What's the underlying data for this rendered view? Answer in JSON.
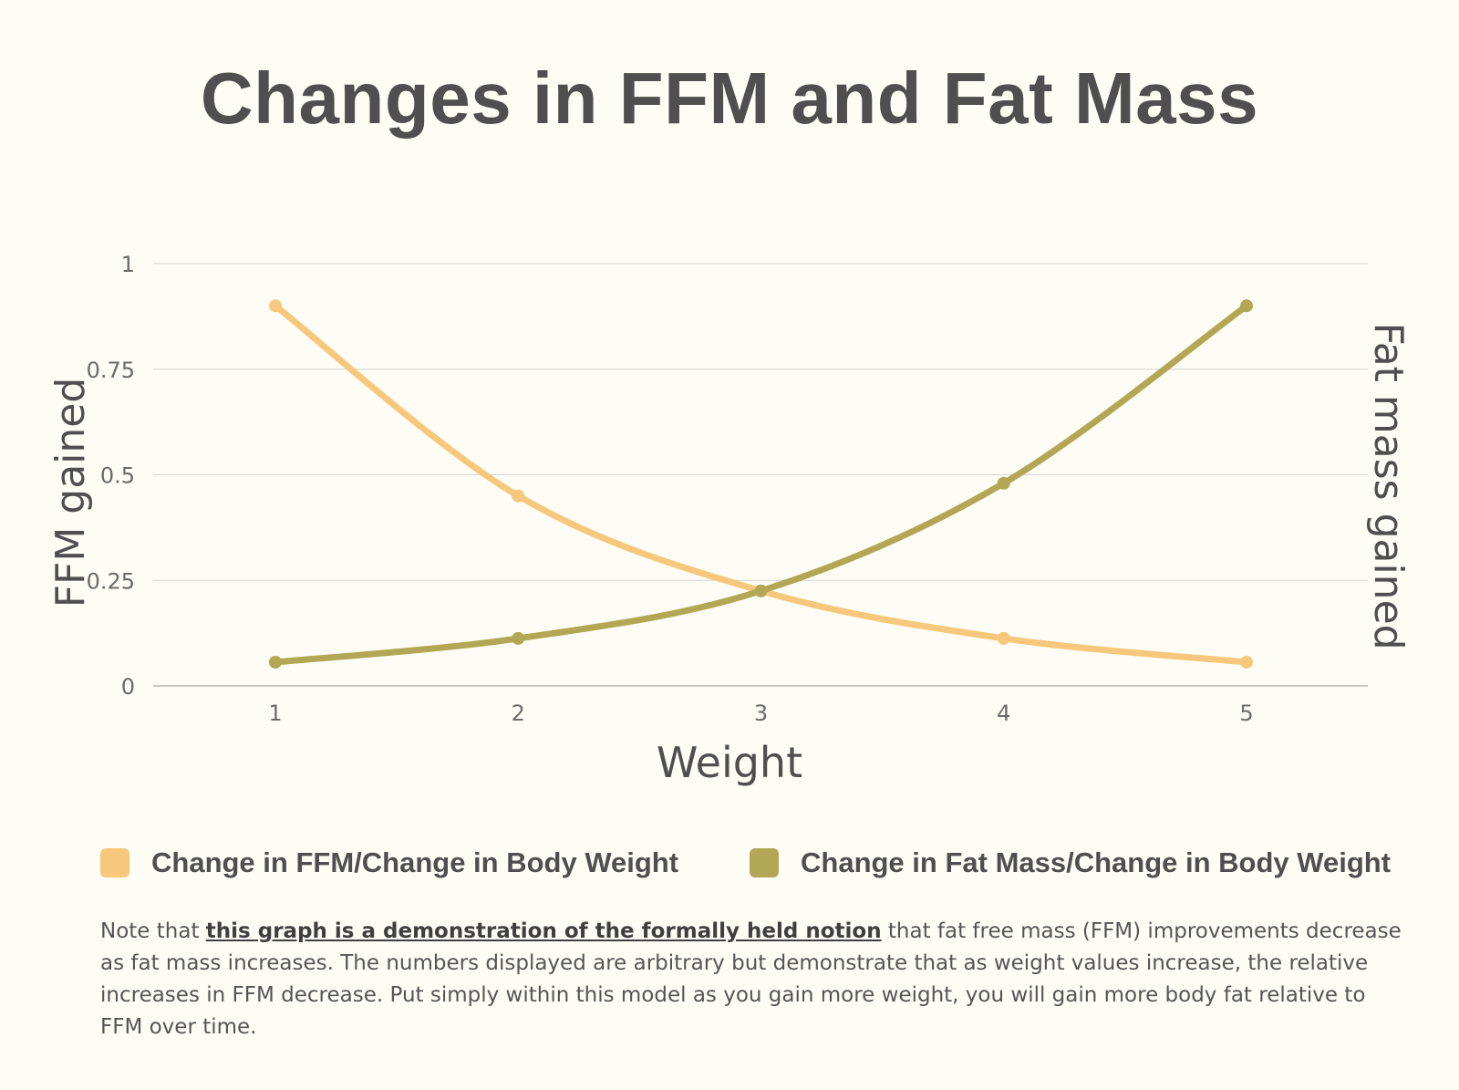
{
  "title": "Changes in FFM and Fat Mass",
  "colors": {
    "background": "#fdfdf5",
    "text": "#4f4f4f",
    "grid": "#d6d6d0",
    "series_ffm": "#f7c77c",
    "series_fat": "#b3a654"
  },
  "chart_data": {
    "type": "line",
    "title": "Changes in FFM and Fat Mass",
    "xlabel": "Weight",
    "ylabel": "FFM gained",
    "y2label": "Fat mass gained",
    "x": [
      1,
      2,
      3,
      4,
      5
    ],
    "ylim": [
      0,
      1
    ],
    "yticks": [
      0,
      0.25,
      0.5,
      0.75,
      1
    ],
    "ytick_labels": [
      "0",
      "0.25",
      "0.5",
      "0.75",
      "1"
    ],
    "grid": true,
    "legend_position": "bottom",
    "series": [
      {
        "name": "Change in FFM/Change in Body Weight",
        "values": [
          0.9,
          0.45,
          0.225,
          0.1125,
          0.05625
        ],
        "color": "#f7c77c"
      },
      {
        "name": "Change in Fat Mass/Change in Body Weight",
        "values": [
          0.05625,
          0.1125,
          0.225,
          0.48,
          0.9
        ],
        "color": "#b3a654"
      }
    ]
  },
  "note": {
    "prefix": "Note that ",
    "emphasis": "this graph is a demonstration of the formally held notion",
    "suffix": " that fat free mass (FFM) improvements decrease as fat mass increases. The numbers displayed are arbitrary but demonstrate that as weight values increase, the relative increases in FFM decrease. Put simply within this model as you gain more weight, you will gain more body fat relative to FFM over time."
  }
}
